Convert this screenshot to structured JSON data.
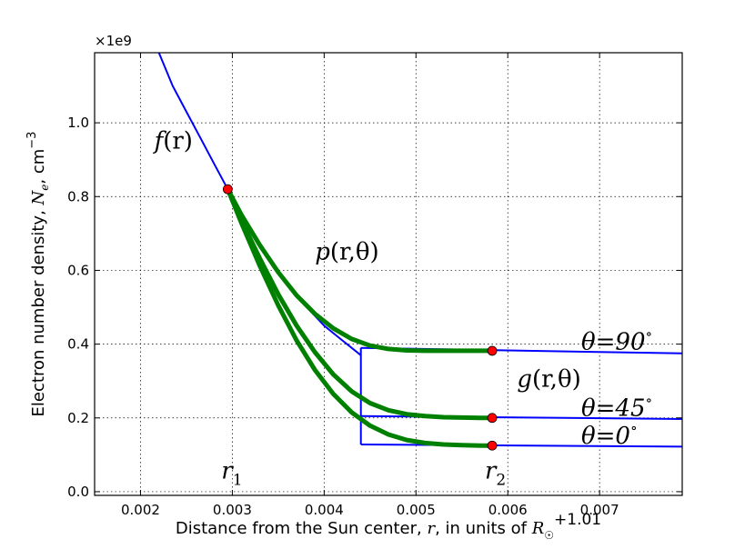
{
  "chart_data": {
    "type": "line",
    "title": "",
    "xlabel": {
      "prefix": "Distance from the Sun center, ",
      "var": "r",
      "mid": ", in units of ",
      "unit": "R",
      "unit_sub": "☉"
    },
    "x_offset_label": "+1.01",
    "ylabel": {
      "prefix": "Electron number density, ",
      "var": "N",
      "var_sub": "e",
      "mid": ", cm",
      "exp": "−3"
    },
    "y_multiplier_label": "×1e9",
    "xlim": [
      0.0015,
      0.0079
    ],
    "ylim": [
      -0.01,
      1.19
    ],
    "xticks": [
      {
        "value": 0.002,
        "label": "0.002"
      },
      {
        "value": 0.003,
        "label": "0.003"
      },
      {
        "value": 0.004,
        "label": "0.004"
      },
      {
        "value": 0.005,
        "label": "0.005"
      },
      {
        "value": 0.006,
        "label": "0.006"
      },
      {
        "value": 0.007,
        "label": "0.007"
      }
    ],
    "yticks": [
      {
        "value": 0.0,
        "label": "0.0"
      },
      {
        "value": 0.2,
        "label": "0.2"
      },
      {
        "value": 0.4,
        "label": "0.4"
      },
      {
        "value": 0.6,
        "label": "0.6"
      },
      {
        "value": 0.8,
        "label": "0.8"
      },
      {
        "value": 1.0,
        "label": "1.0"
      }
    ],
    "grid": true,
    "colors": {
      "f": "#0000ff",
      "g": "#0000ff",
      "p": "#008000",
      "marker": "#ff0000"
    },
    "f_curve": {
      "name": "f(r)",
      "x": [
        0.0022,
        0.00235,
        0.0025,
        0.00265,
        0.0028,
        0.00295,
        0.0031,
        0.00325,
        0.0034,
        0.00355,
        0.0037,
        0.00385,
        0.004,
        0.0042,
        0.0044
      ],
      "y": [
        1.19,
        1.1,
        1.03,
        0.96,
        0.89,
        0.82,
        0.75,
        0.69,
        0.63,
        0.58,
        0.53,
        0.49,
        0.45,
        0.41,
        0.37
      ]
    },
    "g_curves": [
      {
        "name": "θ=90°",
        "x": [
          0.0044,
          0.0079
        ],
        "y": [
          0.39,
          0.375
        ]
      },
      {
        "name": "θ=45°",
        "x": [
          0.0044,
          0.0079
        ],
        "y": [
          0.205,
          0.197
        ]
      },
      {
        "name": "θ=0°",
        "x": [
          0.0044,
          0.0079
        ],
        "y": [
          0.128,
          0.122
        ]
      }
    ],
    "g_box_left_x": 0.0044,
    "p_curves": [
      {
        "x": [
          0.00295,
          0.0031,
          0.0033,
          0.0035,
          0.0037,
          0.0039,
          0.0041,
          0.0043,
          0.0045,
          0.0047,
          0.0049,
          0.0051,
          0.0053,
          0.0055,
          0.0057,
          0.00583
        ],
        "y": [
          0.82,
          0.75,
          0.668,
          0.595,
          0.532,
          0.482,
          0.443,
          0.414,
          0.396,
          0.387,
          0.383,
          0.382,
          0.382,
          0.382,
          0.382,
          0.382
        ]
      },
      {
        "x": [
          0.00295,
          0.0031,
          0.0033,
          0.0035,
          0.0037,
          0.0039,
          0.0041,
          0.0043,
          0.0045,
          0.0047,
          0.0049,
          0.0051,
          0.0053,
          0.0055,
          0.0057,
          0.00583
        ],
        "y": [
          0.82,
          0.735,
          0.632,
          0.535,
          0.45,
          0.378,
          0.318,
          0.272,
          0.24,
          0.221,
          0.21,
          0.205,
          0.202,
          0.201,
          0.2,
          0.2
        ]
      },
      {
        "x": [
          0.00295,
          0.0031,
          0.0033,
          0.0035,
          0.0037,
          0.0039,
          0.0041,
          0.0043,
          0.0045,
          0.0047,
          0.0049,
          0.0051,
          0.0053,
          0.0055,
          0.0057,
          0.00583
        ],
        "y": [
          0.82,
          0.728,
          0.612,
          0.505,
          0.41,
          0.33,
          0.265,
          0.215,
          0.179,
          0.155,
          0.14,
          0.132,
          0.128,
          0.126,
          0.125,
          0.125
        ]
      }
    ],
    "markers": [
      {
        "x": 0.00295,
        "y": 0.82
      },
      {
        "x": 0.00583,
        "y": 0.382
      },
      {
        "x": 0.00583,
        "y": 0.2
      },
      {
        "x": 0.00583,
        "y": 0.125
      }
    ],
    "annotations": {
      "f_label": {
        "fn": "f",
        "args": "(r)",
        "x": 0.00215,
        "y": 0.93
      },
      "p_label": {
        "fn": "p",
        "args": "(r,θ)",
        "x": 0.0039,
        "y": 0.63
      },
      "g_label": {
        "fn": "g",
        "args": "(r,θ)",
        "x": 0.0061,
        "y": 0.285
      },
      "theta90": {
        "text": "θ=90",
        "deg": "∘",
        "x": 0.0068,
        "y": 0.385
      },
      "theta45": {
        "text": "θ=45",
        "deg": "∘",
        "x": 0.0068,
        "y": 0.205
      },
      "theta0": {
        "text": "θ=0",
        "deg": "∘",
        "x": 0.0068,
        "y": 0.13
      },
      "r1": {
        "var": "r",
        "sub": "1",
        "x": 0.00288,
        "y": 0.035
      },
      "r2": {
        "var": "r",
        "sub": "2",
        "x": 0.00575,
        "y": 0.035
      }
    }
  }
}
